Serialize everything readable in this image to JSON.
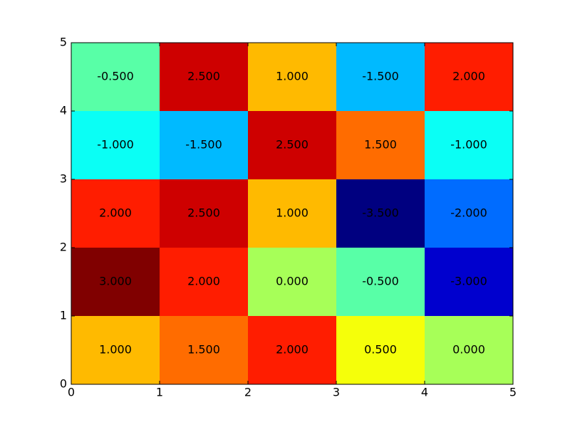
{
  "chart_data": {
    "type": "heatmap",
    "colormap": "jet",
    "values": [
      [
        1.0,
        1.5,
        2.0,
        0.5,
        0.0
      ],
      [
        3.0,
        2.0,
        0.0,
        -0.5,
        -3.0
      ],
      [
        2.0,
        2.5,
        1.0,
        -3.5,
        -2.0
      ],
      [
        -1.0,
        -1.5,
        2.5,
        1.5,
        -1.0
      ],
      [
        -0.5,
        2.5,
        1.0,
        -1.5,
        2.0
      ]
    ],
    "value_labels": [
      [
        "1.000",
        "1.500",
        "2.000",
        "0.500",
        "0.000"
      ],
      [
        "3.000",
        "2.000",
        "0.000",
        "-0.500",
        "-3.000"
      ],
      [
        "2.000",
        "2.500",
        "1.000",
        "-3.500",
        "-2.000"
      ],
      [
        "-1.000",
        "-1.500",
        "2.500",
        "1.500",
        "-1.000"
      ],
      [
        "-0.500",
        "2.500",
        "1.000",
        "-1.500",
        "2.000"
      ]
    ],
    "xlim": [
      0,
      5
    ],
    "xticks": [
      0,
      1,
      2,
      3,
      4,
      5
    ],
    "ylim": [
      0,
      5
    ],
    "yticks": [
      0,
      1,
      2,
      3,
      4,
      5
    ]
  }
}
